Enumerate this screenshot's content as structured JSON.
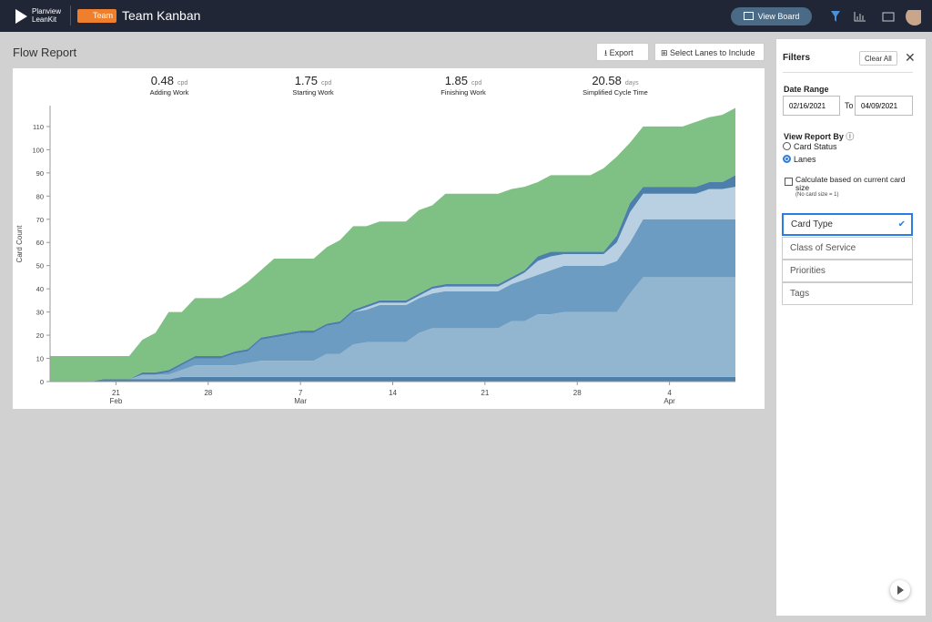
{
  "header": {
    "logo_line1": "Planview",
    "logo_line2": "LeanKit",
    "badge": "Team",
    "board_title": "Team Kanban",
    "view_board": "View Board"
  },
  "report": {
    "title": "Flow Report",
    "export": "Export",
    "select_lanes": "Select Lanes to Include",
    "stats": [
      {
        "value": 0.48,
        "unit": "cpd",
        "label": "Adding Work"
      },
      {
        "value": 1.75,
        "unit": "cpd",
        "label": "Starting Work"
      },
      {
        "value": 1.85,
        "unit": "cpd",
        "label": "Finishing Work"
      },
      {
        "value": 20.58,
        "unit": "days",
        "label": "Simplified Cycle Time"
      }
    ]
  },
  "chart_data": {
    "type": "stacked-area",
    "y_label": "Card Count",
    "categories": [
      null,
      null,
      null,
      null,
      null,
      "21\nFeb",
      null,
      null,
      null,
      null,
      null,
      null,
      "28",
      null,
      null,
      null,
      null,
      null,
      null,
      "7\nMar",
      null,
      null,
      null,
      null,
      null,
      null,
      "14",
      null,
      null,
      null,
      null,
      null,
      null,
      "21",
      null,
      null,
      null,
      null,
      null,
      null,
      "28",
      null,
      null,
      null,
      null,
      null,
      null,
      "4\nApr",
      null,
      null,
      null,
      null,
      null
    ],
    "ylim": [
      0,
      119
    ],
    "yticks": [
      0,
      10,
      20,
      30,
      40,
      50,
      60,
      70,
      80,
      90,
      100,
      110
    ],
    "grid": false,
    "series": [
      {
        "color": "#4d7fab",
        "values": [
          0,
          0,
          0,
          0,
          1,
          1,
          1,
          1,
          1,
          1,
          2,
          2,
          2,
          2,
          2,
          2,
          2,
          2,
          2,
          2,
          2,
          2,
          2,
          2,
          2,
          2,
          2,
          2,
          2,
          2,
          2,
          2,
          2,
          2,
          2,
          2,
          2,
          2,
          2,
          2,
          2,
          2,
          2,
          2,
          2,
          2,
          2,
          2,
          2,
          2,
          2,
          2,
          2
        ]
      },
      {
        "color": "#93b6d0",
        "values": [
          0,
          0,
          0,
          0,
          0,
          0,
          0,
          2,
          2,
          2,
          3,
          5,
          5,
          5,
          5,
          6,
          7,
          7,
          7,
          7,
          7,
          10,
          10,
          14,
          15,
          15,
          15,
          15,
          19,
          21,
          21,
          21,
          21,
          21,
          21,
          24,
          24,
          27,
          27,
          28,
          28,
          28,
          28,
          28,
          36,
          43,
          43,
          43,
          43,
          43,
          43,
          43,
          43
        ]
      },
      {
        "color": "#6c9cc1",
        "values": [
          0,
          0,
          0,
          0,
          0,
          0,
          0,
          0,
          0,
          1,
          2,
          3,
          3,
          3,
          5,
          5,
          9,
          10,
          11,
          12,
          12,
          12,
          13,
          14,
          14,
          16,
          16,
          16,
          15,
          15,
          16,
          16,
          16,
          16,
          16,
          16,
          18,
          17,
          19,
          20,
          20,
          20,
          20,
          22,
          22,
          25,
          25,
          25,
          25,
          25,
          25,
          25,
          25
        ]
      },
      {
        "color": "#b8d0e2",
        "values": [
          0,
          0,
          0,
          0,
          0,
          0,
          0,
          0,
          0,
          0,
          0,
          0,
          0,
          0,
          0,
          0,
          0,
          0,
          0,
          0,
          0,
          0,
          0,
          0,
          1,
          1,
          1,
          1,
          1,
          2,
          2,
          2,
          2,
          2,
          2,
          2,
          3,
          6,
          6,
          5,
          5,
          5,
          5,
          8,
          13,
          11,
          11,
          11,
          11,
          11,
          13,
          13,
          14
        ]
      },
      {
        "color": "#4d7fab",
        "values": [
          0,
          0,
          0,
          0,
          0,
          0,
          0,
          1,
          1,
          1,
          1,
          1,
          1,
          1,
          1,
          1,
          1,
          1,
          1,
          1,
          1,
          1,
          1,
          1,
          1,
          1,
          1,
          1,
          1,
          1,
          1,
          1,
          1,
          1,
          1,
          1,
          1,
          2,
          2,
          1,
          1,
          1,
          1,
          3,
          4,
          3,
          3,
          3,
          3,
          3,
          3,
          3,
          5
        ]
      },
      {
        "color": "#7fc184",
        "values": [
          11,
          11,
          11,
          11,
          10,
          10,
          10,
          14,
          17,
          25,
          22,
          25,
          25,
          25,
          26,
          29,
          29,
          33,
          32,
          31,
          31,
          33,
          35,
          36,
          34,
          34,
          34,
          34,
          36,
          35,
          39,
          39,
          39,
          39,
          39,
          38,
          36,
          32,
          33,
          33,
          33,
          33,
          36,
          34,
          26,
          26,
          26,
          26,
          26,
          28,
          28,
          29,
          29
        ]
      }
    ]
  },
  "filters": {
    "title": "Filters",
    "clear_all": "Clear All",
    "date_range": "Date Range",
    "from": "02/16/2021",
    "to_label": "To",
    "to": "04/09/2021",
    "view_by": "View Report By",
    "options": [
      "Card Status",
      "Lanes"
    ],
    "calc": "Calculate based on current card size",
    "calc_note": "(No card size = 1)",
    "list": [
      "Card Type",
      "Class of Service",
      "Priorities",
      "Tags"
    ]
  }
}
